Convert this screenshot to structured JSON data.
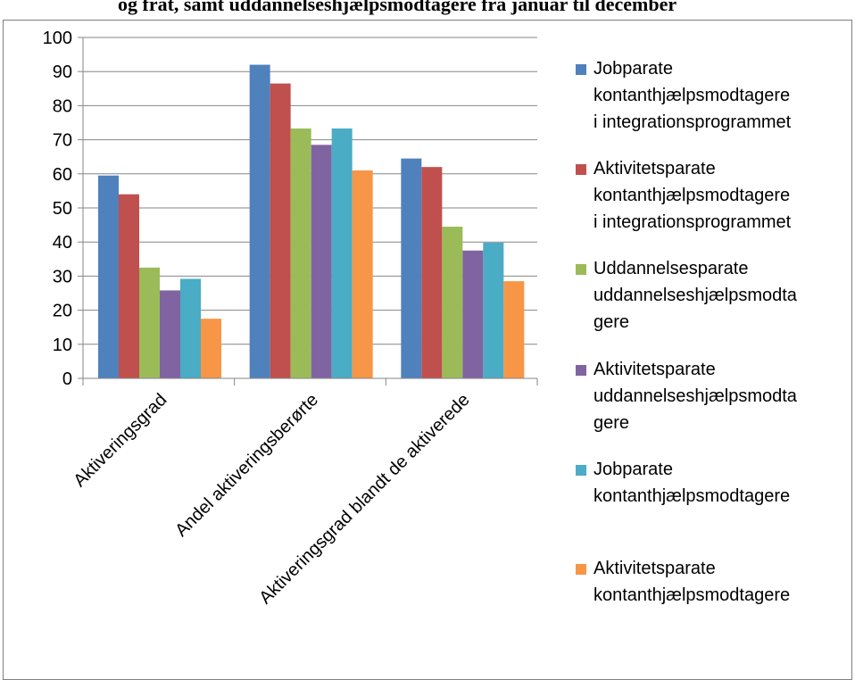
{
  "cut_title": "og frat, samt uddannelseshjælpsmodtagere fra januar til december",
  "chart_data": {
    "type": "bar",
    "categories": [
      "Aktiveringsgrad",
      "Andel aktiveringsberørte",
      "Aktiveringsgrad blandt de aktiverede"
    ],
    "ylim": [
      0,
      100
    ],
    "yticks": [
      0,
      10,
      20,
      30,
      40,
      50,
      60,
      70,
      80,
      90,
      100
    ],
    "grid": true,
    "legend_position": "right",
    "series": [
      {
        "name": "Jobparate kontanthjælpsmodtagere i integrationsprogrammet",
        "color": "#4F81BD",
        "values": [
          59.5,
          92,
          64.5
        ]
      },
      {
        "name": "Aktivitetsparate kontanthjælpsmodtagere i integrationsprogrammet",
        "color": "#C0504D",
        "values": [
          54,
          86.5,
          62
        ]
      },
      {
        "name": "Uddannelsesparate uddannelseshjælpsmodtagere",
        "color": "#9BBB59",
        "values": [
          32.5,
          73.3,
          44.5
        ]
      },
      {
        "name": "Aktivitetsparate uddannelseshjælpsmodtagere",
        "color": "#8064A2",
        "values": [
          25.8,
          68.5,
          37.5
        ]
      },
      {
        "name": "Jobparate kontanthjælpsmodtagere",
        "color": "#4BACC6",
        "values": [
          29.2,
          73.3,
          39.8
        ]
      },
      {
        "name": "Aktivitetsparate kontanthjælpsmodtagere",
        "color": "#F79646",
        "values": [
          17.5,
          61,
          28.5
        ]
      }
    ]
  },
  "legend_lines": [
    "Jobparate\nkontanthjælpsmodtagere\ni integrationsprogrammet",
    "Aktivitetsparate\nkontanthjælpsmodtagere\ni integrationsprogrammet",
    "Uddannelsesparate\nuddannelseshjælpsmodta\ngere",
    "Aktivitetsparate\nuddannelseshjælpsmodta\ngere",
    "Jobparate\nkontanthjælpsmodtagere",
    "Aktivitetsparate\nkontanthjælpsmodtagere"
  ]
}
